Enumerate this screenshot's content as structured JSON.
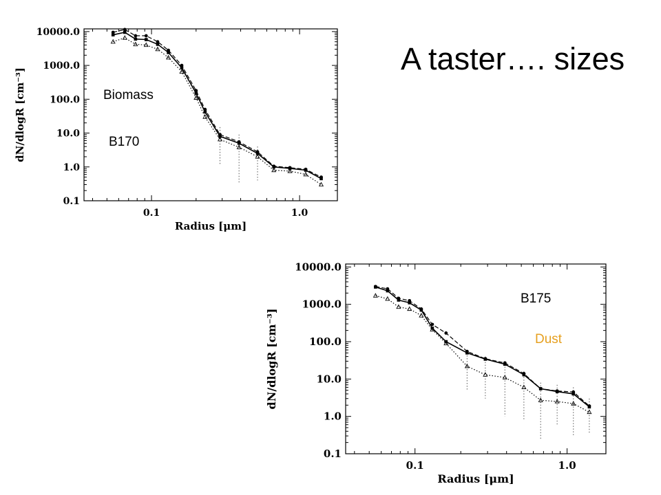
{
  "slide": {
    "title": "A taster…. sizes",
    "annotations": {
      "biomass": "Biomass",
      "b170": "B170",
      "b175": "B175",
      "dust": "Dust"
    },
    "colors": {
      "dust_label": "#e6a020",
      "text": "#000000"
    }
  },
  "chart_data": [
    {
      "type": "line",
      "flight": "B170",
      "xlabel": "Radius [μm]",
      "ylabel": "dN/dlogR [cm⁻³]",
      "xscale": "log",
      "yscale": "log",
      "xlim": [
        0.035,
        1.8
      ],
      "ylim": [
        0.1,
        12000
      ],
      "x_ticks": [
        {
          "value": 0.1,
          "label": "0.1"
        },
        {
          "value": 1.0,
          "label": "1.0"
        }
      ],
      "y_ticks": [
        {
          "value": 0.1,
          "label": "0.1"
        },
        {
          "value": 1,
          "label": "1.0"
        },
        {
          "value": 10,
          "label": "10.0"
        },
        {
          "value": 100,
          "label": "100.0"
        },
        {
          "value": 1000,
          "label": "1000.0"
        },
        {
          "value": 10000,
          "label": "10000.0"
        }
      ],
      "x": [
        0.055,
        0.066,
        0.078,
        0.092,
        0.11,
        0.13,
        0.16,
        0.2,
        0.23,
        0.29,
        0.39,
        0.52,
        0.67,
        0.86,
        1.1,
        1.4
      ],
      "series": [
        {
          "style": "dashed",
          "marker": "circle",
          "values": [
            9500,
            11500,
            7500,
            7500,
            5000,
            2800,
            1000,
            180,
            50,
            9,
            5.5,
            2.8,
            1.05,
            0.95,
            0.85,
            0.5
          ]
        },
        {
          "style": "solid",
          "marker": "square",
          "values": [
            8000,
            9500,
            6000,
            5800,
            4200,
            2400,
            850,
            150,
            42,
            8,
            5,
            2.5,
            1.0,
            0.9,
            0.8,
            0.45
          ]
        },
        {
          "style": "dotted",
          "marker": "triangle",
          "values": [
            5000,
            6500,
            4200,
            4000,
            3000,
            1700,
            650,
            110,
            30,
            6.5,
            3.8,
            2.0,
            0.8,
            0.75,
            0.6,
            0.3
          ]
        }
      ],
      "error_bars": [
        {
          "x": 0.29,
          "low": 1.2,
          "high": 15
        },
        {
          "x": 0.39,
          "low": 0.35,
          "high": 9
        },
        {
          "x": 0.52,
          "low": 0.4,
          "high": 4
        }
      ]
    },
    {
      "type": "line",
      "flight": "B175",
      "xlabel": "Radius [μm]",
      "ylabel": "dN/dlogR [cm⁻³]",
      "xscale": "log",
      "yscale": "log",
      "xlim": [
        0.035,
        1.8
      ],
      "ylim": [
        0.1,
        12000
      ],
      "x_ticks": [
        {
          "value": 0.1,
          "label": "0.1"
        },
        {
          "value": 1.0,
          "label": "1.0"
        }
      ],
      "y_ticks": [
        {
          "value": 0.1,
          "label": "0.1"
        },
        {
          "value": 1,
          "label": "1.0"
        },
        {
          "value": 10,
          "label": "10.0"
        },
        {
          "value": 100,
          "label": "100.0"
        },
        {
          "value": 1000,
          "label": "1000.0"
        },
        {
          "value": 10000,
          "label": "10000.0"
        }
      ],
      "x": [
        0.055,
        0.066,
        0.078,
        0.092,
        0.11,
        0.13,
        0.16,
        0.22,
        0.29,
        0.39,
        0.52,
        0.67,
        0.86,
        1.1,
        1.4
      ],
      "series": [
        {
          "style": "dashed",
          "marker": "circle",
          "values": [
            3000,
            2600,
            1450,
            1250,
            750,
            290,
            170,
            55,
            35,
            27,
            14,
            5.5,
            4.8,
            4.5,
            1.9
          ]
        },
        {
          "style": "solid",
          "marker": "square",
          "values": [
            2900,
            2300,
            1300,
            1100,
            700,
            230,
            100,
            50,
            34,
            25,
            13,
            5.5,
            4.6,
            4.0,
            1.8
          ]
        },
        {
          "style": "dotted",
          "marker": "triangle",
          "values": [
            1700,
            1400,
            850,
            750,
            500,
            210,
            90,
            22,
            13,
            11,
            6,
            2.7,
            2.5,
            2.2,
            1.3
          ]
        }
      ],
      "error_bars": [
        {
          "x": 0.22,
          "low": 5,
          "high": 60
        },
        {
          "x": 0.29,
          "low": 3,
          "high": 40
        },
        {
          "x": 0.39,
          "low": 1,
          "high": 30
        },
        {
          "x": 0.52,
          "low": 0.8,
          "high": 16
        },
        {
          "x": 0.67,
          "low": 0.25,
          "high": 8
        },
        {
          "x": 0.86,
          "low": 0.6,
          "high": 7
        },
        {
          "x": 1.1,
          "low": 0.3,
          "high": 6
        },
        {
          "x": 1.4,
          "low": 0.35,
          "high": 3
        }
      ]
    }
  ]
}
